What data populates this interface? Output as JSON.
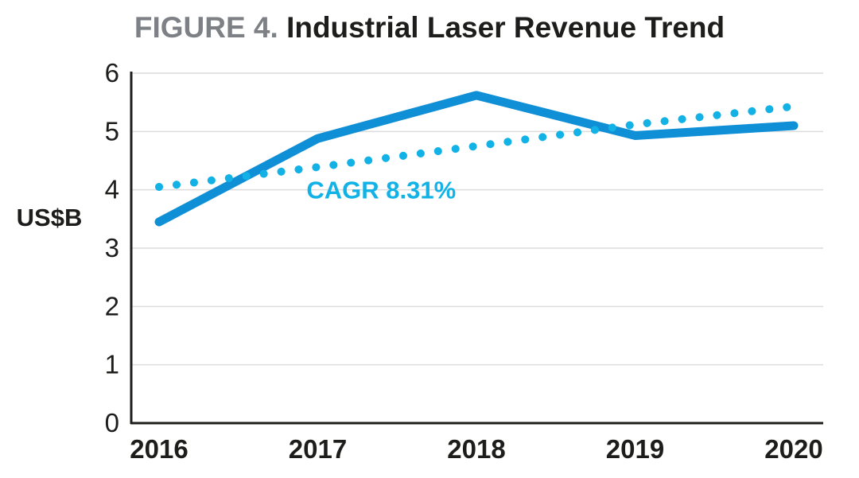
{
  "title": {
    "prefix": "FIGURE 4.",
    "main": "Industrial Laser Revenue Trend"
  },
  "colors": {
    "series": "#0f8fd6",
    "trend": "#12b2e6",
    "grid": "#dcdcdc",
    "axis": "#1d1d1b",
    "title_prefix": "#7d8185"
  },
  "chart_data": {
    "type": "line",
    "title": "FIGURE 4. Industrial Laser Revenue Trend",
    "xlabel": "",
    "ylabel": "US$B",
    "categories": [
      "2016",
      "2017",
      "2018",
      "2019",
      "2020"
    ],
    "series": [
      {
        "values": [
          3.45,
          4.88,
          5.62,
          4.93,
          5.1
        ],
        "style": "solid"
      },
      {
        "values": [
          4.05,
          4.39,
          4.75,
          5.12,
          5.43
        ],
        "style": "dotted"
      }
    ],
    "ylim": [
      0,
      6
    ],
    "yticks": [
      "0",
      "1",
      "2",
      "3",
      "4",
      "5",
      "6"
    ],
    "grid": true,
    "legend": "none",
    "annotations": [
      {
        "text": "CAGR 8.31%",
        "x": "2017.4",
        "y": 4.0
      }
    ]
  }
}
